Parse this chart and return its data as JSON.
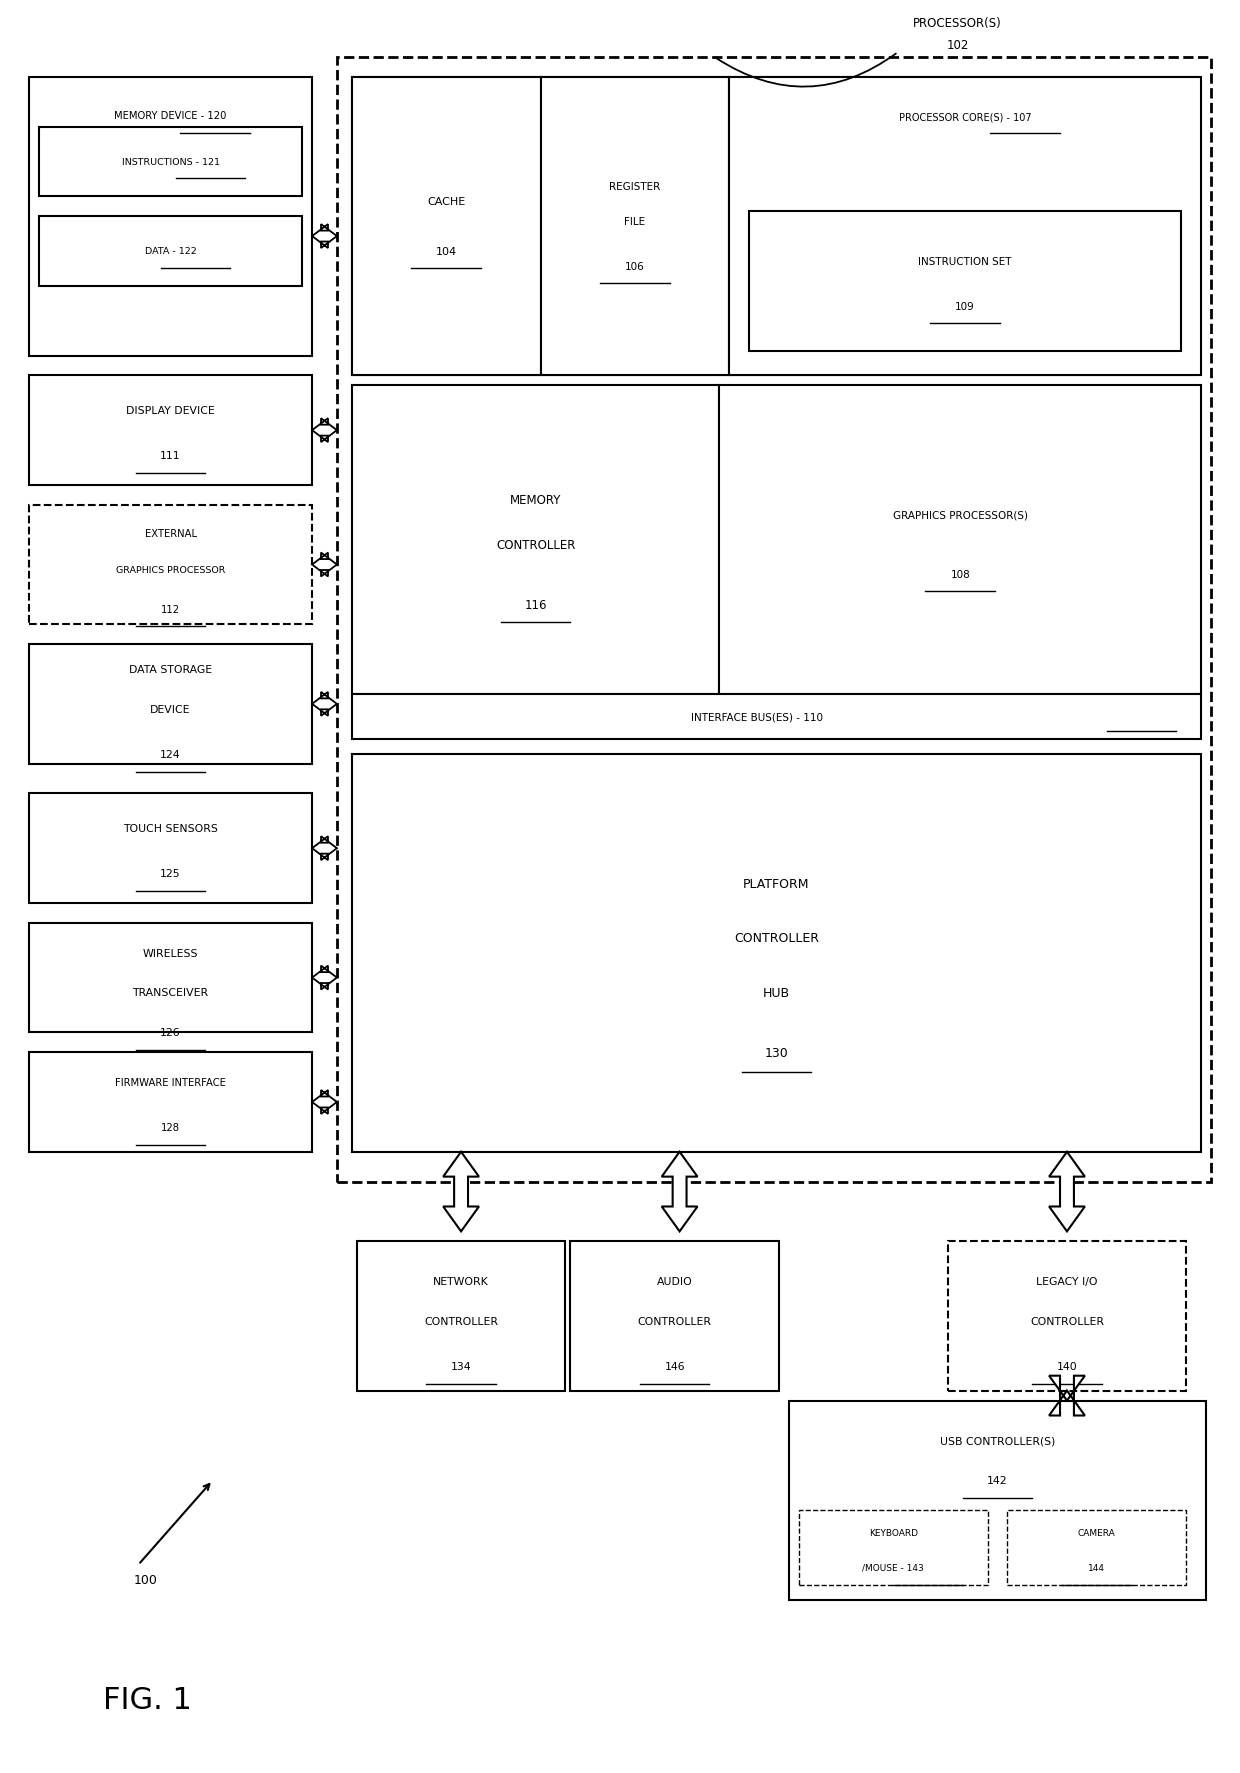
{
  "fig_width": 12.4,
  "fig_height": 17.74,
  "bg_color": "#ffffff",
  "line_color": "#000000",
  "xlim": [
    0,
    124
  ],
  "ylim": [
    0,
    177.4
  ],
  "processor_label": "PROCESSOR(S)",
  "processor_num": "102",
  "cache_label": "CACHE",
  "cache_num": "104",
  "reg_label1": "REGISTER",
  "reg_label2": "FILE",
  "reg_num": "106",
  "pcore_label": "PROCESSOR CORE(S) - 107",
  "iset_label": "INSTRUCTION SET",
  "iset_num": "109",
  "mc_label1": "MEMORY",
  "mc_label2": "CONTROLLER",
  "mc_num": "116",
  "gp_label": "GRAPHICS PROCESSOR(S)",
  "gp_num": "108",
  "ibus_label": "INTERFACE BUS(ES) - 110",
  "pch_label1": "PLATFORM",
  "pch_label2": "CONTROLLER",
  "pch_label3": "HUB",
  "pch_num": "130",
  "mem_label": "MEMORY DEVICE - 120",
  "instr_label": "INSTRUCTIONS - 121",
  "data_label": "DATA - 122",
  "disp_label1": "DISPLAY DEVICE",
  "disp_num": "111",
  "ext_label1": "EXTERNAL",
  "ext_label2": "GRAPHICS PROCESSOR",
  "ext_num": "112",
  "dsd_label1": "DATA STORAGE",
  "dsd_label2": "DEVICE",
  "dsd_num": "124",
  "ts_label": "TOUCH SENSORS",
  "ts_num": "125",
  "wt_label1": "WIRELESS",
  "wt_label2": "TRANSCEIVER",
  "wt_num": "126",
  "fi_label": "FIRMWARE INTERFACE",
  "fi_num": "128",
  "nc_label1": "NETWORK",
  "nc_label2": "CONTROLLER",
  "nc_num": "134",
  "ac_label1": "AUDIO",
  "ac_label2": "CONTROLLER",
  "ac_num": "146",
  "lio_label1": "LEGACY I/O",
  "lio_label2": "CONTROLLER",
  "lio_num": "140",
  "usb_label": "USB CONTROLLER(S)",
  "usb_num": "142",
  "km_label1": "KEYBOARD",
  "km_label2": "/MOUSE - 143",
  "cam_label": "CAMERA",
  "cam_num": "144",
  "fig_label": "FIG. 1",
  "ref_num": "100"
}
